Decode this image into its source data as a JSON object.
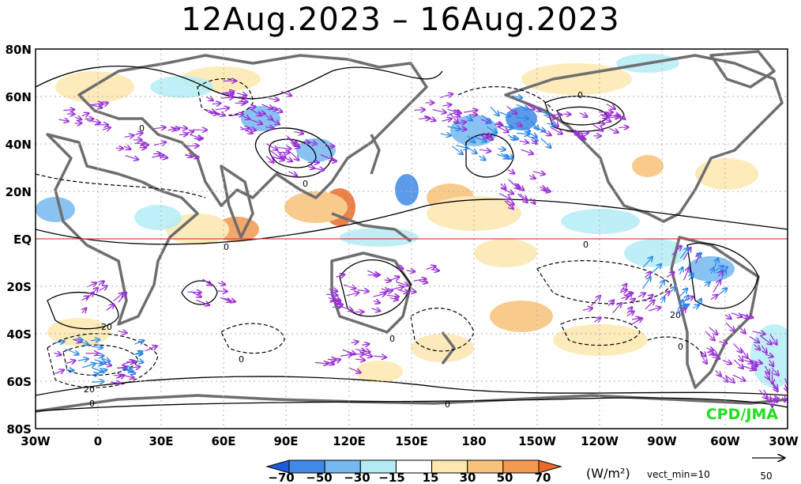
{
  "title": "12Aug.2023 – 16Aug.2023",
  "y_ticks": [
    "80N",
    "60N",
    "40N",
    "20N",
    "EQ",
    "20S",
    "40S",
    "60S",
    "80S"
  ],
  "x_ticks": [
    "30W",
    "0",
    "30E",
    "60E",
    "90E",
    "120E",
    "150E",
    "180",
    "150W",
    "120W",
    "90W",
    "60W",
    "30W"
  ],
  "colorbar": {
    "levels": [
      "−70",
      "−50",
      "−30",
      "−15",
      "15",
      "30",
      "50",
      "70"
    ],
    "colors": [
      "#1f5bd6",
      "#3f8ae6",
      "#74b8f0",
      "#b4ecf6",
      "#ffffff",
      "#fde7ae",
      "#f7c27a",
      "#f29a52",
      "#eb6a2a"
    ],
    "unit_label": "(W/m²)",
    "vect_min_label": "vect_min=10"
  },
  "reference_vector": {
    "value_label": "50"
  },
  "credit": "CPD/JMA",
  "contour_labels": [
    "0",
    "0",
    "0",
    "20",
    "0",
    "0",
    "0",
    "0",
    "20",
    "0",
    "20",
    "0",
    "0"
  ],
  "colors": {
    "equator_line": "#e34040",
    "coastline": "#6e6e6e",
    "vectors": "#9a2fd6",
    "strong_vectors": "#2a86ea",
    "credit": "#22dd22"
  }
}
